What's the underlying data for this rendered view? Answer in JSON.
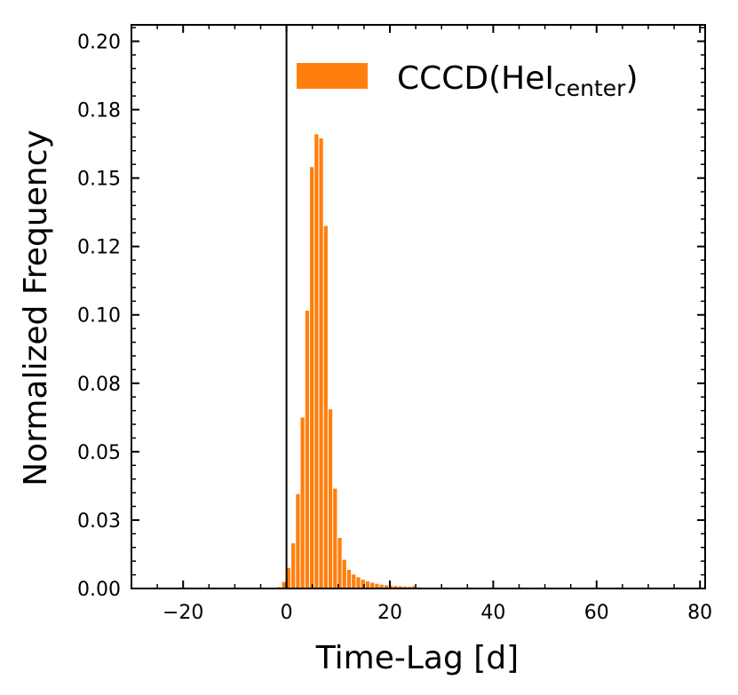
{
  "chart_data": {
    "type": "bar",
    "xlabel": "Time-Lag [d]",
    "ylabel": "Normalized Frequency",
    "xlim": [
      -30,
      81
    ],
    "ylim": [
      0,
      0.206
    ],
    "x_ticks": [
      -20,
      0,
      20,
      40,
      60,
      80
    ],
    "x_tick_labels": [
      "−20",
      "0",
      "20",
      "40",
      "60",
      "80"
    ],
    "y_ticks": [
      0.0,
      0.025,
      0.05,
      0.075,
      0.1,
      0.125,
      0.15,
      0.175,
      0.2
    ],
    "y_tick_labels": [
      "0.00",
      "0.03",
      "0.05",
      "0.08",
      "0.10",
      "0.12",
      "0.15",
      "0.18",
      "0.20"
    ],
    "vline_x": 0,
    "bin_width": 0.9,
    "series": [
      {
        "name": "CCCD(HeI",
        "name_subscript": "center",
        "name_suffix": ")",
        "color": "#ff7f0e",
        "x": [
          -1.4,
          -0.5,
          0.4,
          1.3,
          2.2,
          3.1,
          4.0,
          4.9,
          5.8,
          6.7,
          7.6,
          8.5,
          9.4,
          10.3,
          11.2,
          12.1,
          13.0,
          13.9,
          14.8,
          15.7,
          16.6,
          17.5,
          18.4,
          19.3,
          20.2,
          21.1,
          22.0,
          22.9,
          23.8,
          24.7,
          25.6,
          26.5,
          27.4,
          28.3,
          29.2,
          30.1
        ],
        "values": [
          0.0005,
          0.0024,
          0.0075,
          0.0165,
          0.0345,
          0.0625,
          0.1015,
          0.154,
          0.166,
          0.1645,
          0.1325,
          0.0655,
          0.0365,
          0.0185,
          0.0105,
          0.0068,
          0.0051,
          0.0041,
          0.0032,
          0.0026,
          0.0021,
          0.0017,
          0.0014,
          0.0012,
          0.001,
          0.0009,
          0.0008,
          0.0007,
          0.0006,
          0.0009,
          0.0004,
          0.0003,
          0.0003,
          0.0002,
          0.0002,
          0.0001
        ]
      }
    ],
    "legend_placement": "top-right",
    "grid": false
  }
}
